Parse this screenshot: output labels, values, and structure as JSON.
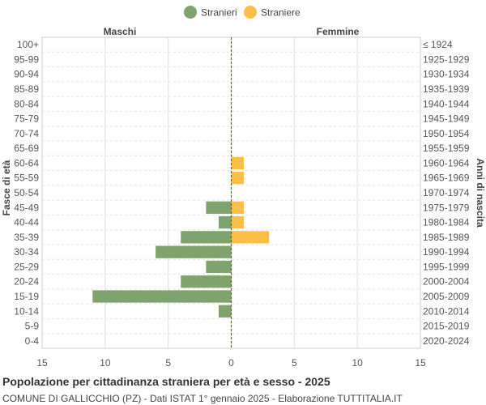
{
  "chart_data": {
    "type": "bar",
    "orientation": "horizontal-pyramid",
    "title": "Popolazione per cittadinanza straniera per età e sesso - 2025",
    "subtitle": "COMUNE DI GALLICCHIO (PZ) - Dati ISTAT 1° gennaio 2025 - Elaborazione TUTTITALIA.IT",
    "left_label": "Maschi",
    "right_label": "Femmine",
    "ylabel_left": "Fasce di età",
    "ylabel_right": "Anni di nascita",
    "xlim": [
      -15,
      15
    ],
    "x_ticks": [
      -15,
      -10,
      -5,
      0,
      5,
      10,
      15
    ],
    "x_tick_labels": [
      "15",
      "10",
      "5",
      "0",
      "5",
      "10",
      "15"
    ],
    "grid": true,
    "legend_position": "top-center",
    "categories": [
      "100+",
      "95-99",
      "90-94",
      "85-89",
      "80-84",
      "75-79",
      "70-74",
      "65-69",
      "60-64",
      "55-59",
      "50-54",
      "45-49",
      "40-44",
      "35-39",
      "30-34",
      "25-29",
      "20-24",
      "15-19",
      "10-14",
      "5-9",
      "0-4"
    ],
    "birth_years": [
      "≤ 1924",
      "1925-1929",
      "1930-1934",
      "1935-1939",
      "1940-1944",
      "1945-1949",
      "1950-1954",
      "1955-1959",
      "1960-1964",
      "1965-1969",
      "1970-1974",
      "1975-1979",
      "1980-1984",
      "1985-1989",
      "1990-1994",
      "1995-1999",
      "2000-2004",
      "2005-2009",
      "2010-2014",
      "2015-2019",
      "2020-2024"
    ],
    "series": [
      {
        "name": "Stranieri",
        "color": "#7fa36d",
        "side": "left",
        "values": [
          0,
          0,
          0,
          0,
          0,
          0,
          0,
          0,
          0,
          0,
          0,
          2,
          1,
          4,
          6,
          2,
          4,
          11,
          1,
          0,
          0
        ]
      },
      {
        "name": "Straniere",
        "color": "#fbbf48",
        "side": "right",
        "values": [
          0,
          0,
          0,
          0,
          0,
          0,
          0,
          0,
          1,
          1,
          0,
          1,
          1,
          3,
          0,
          0,
          0,
          0,
          0,
          0,
          0
        ]
      }
    ]
  }
}
